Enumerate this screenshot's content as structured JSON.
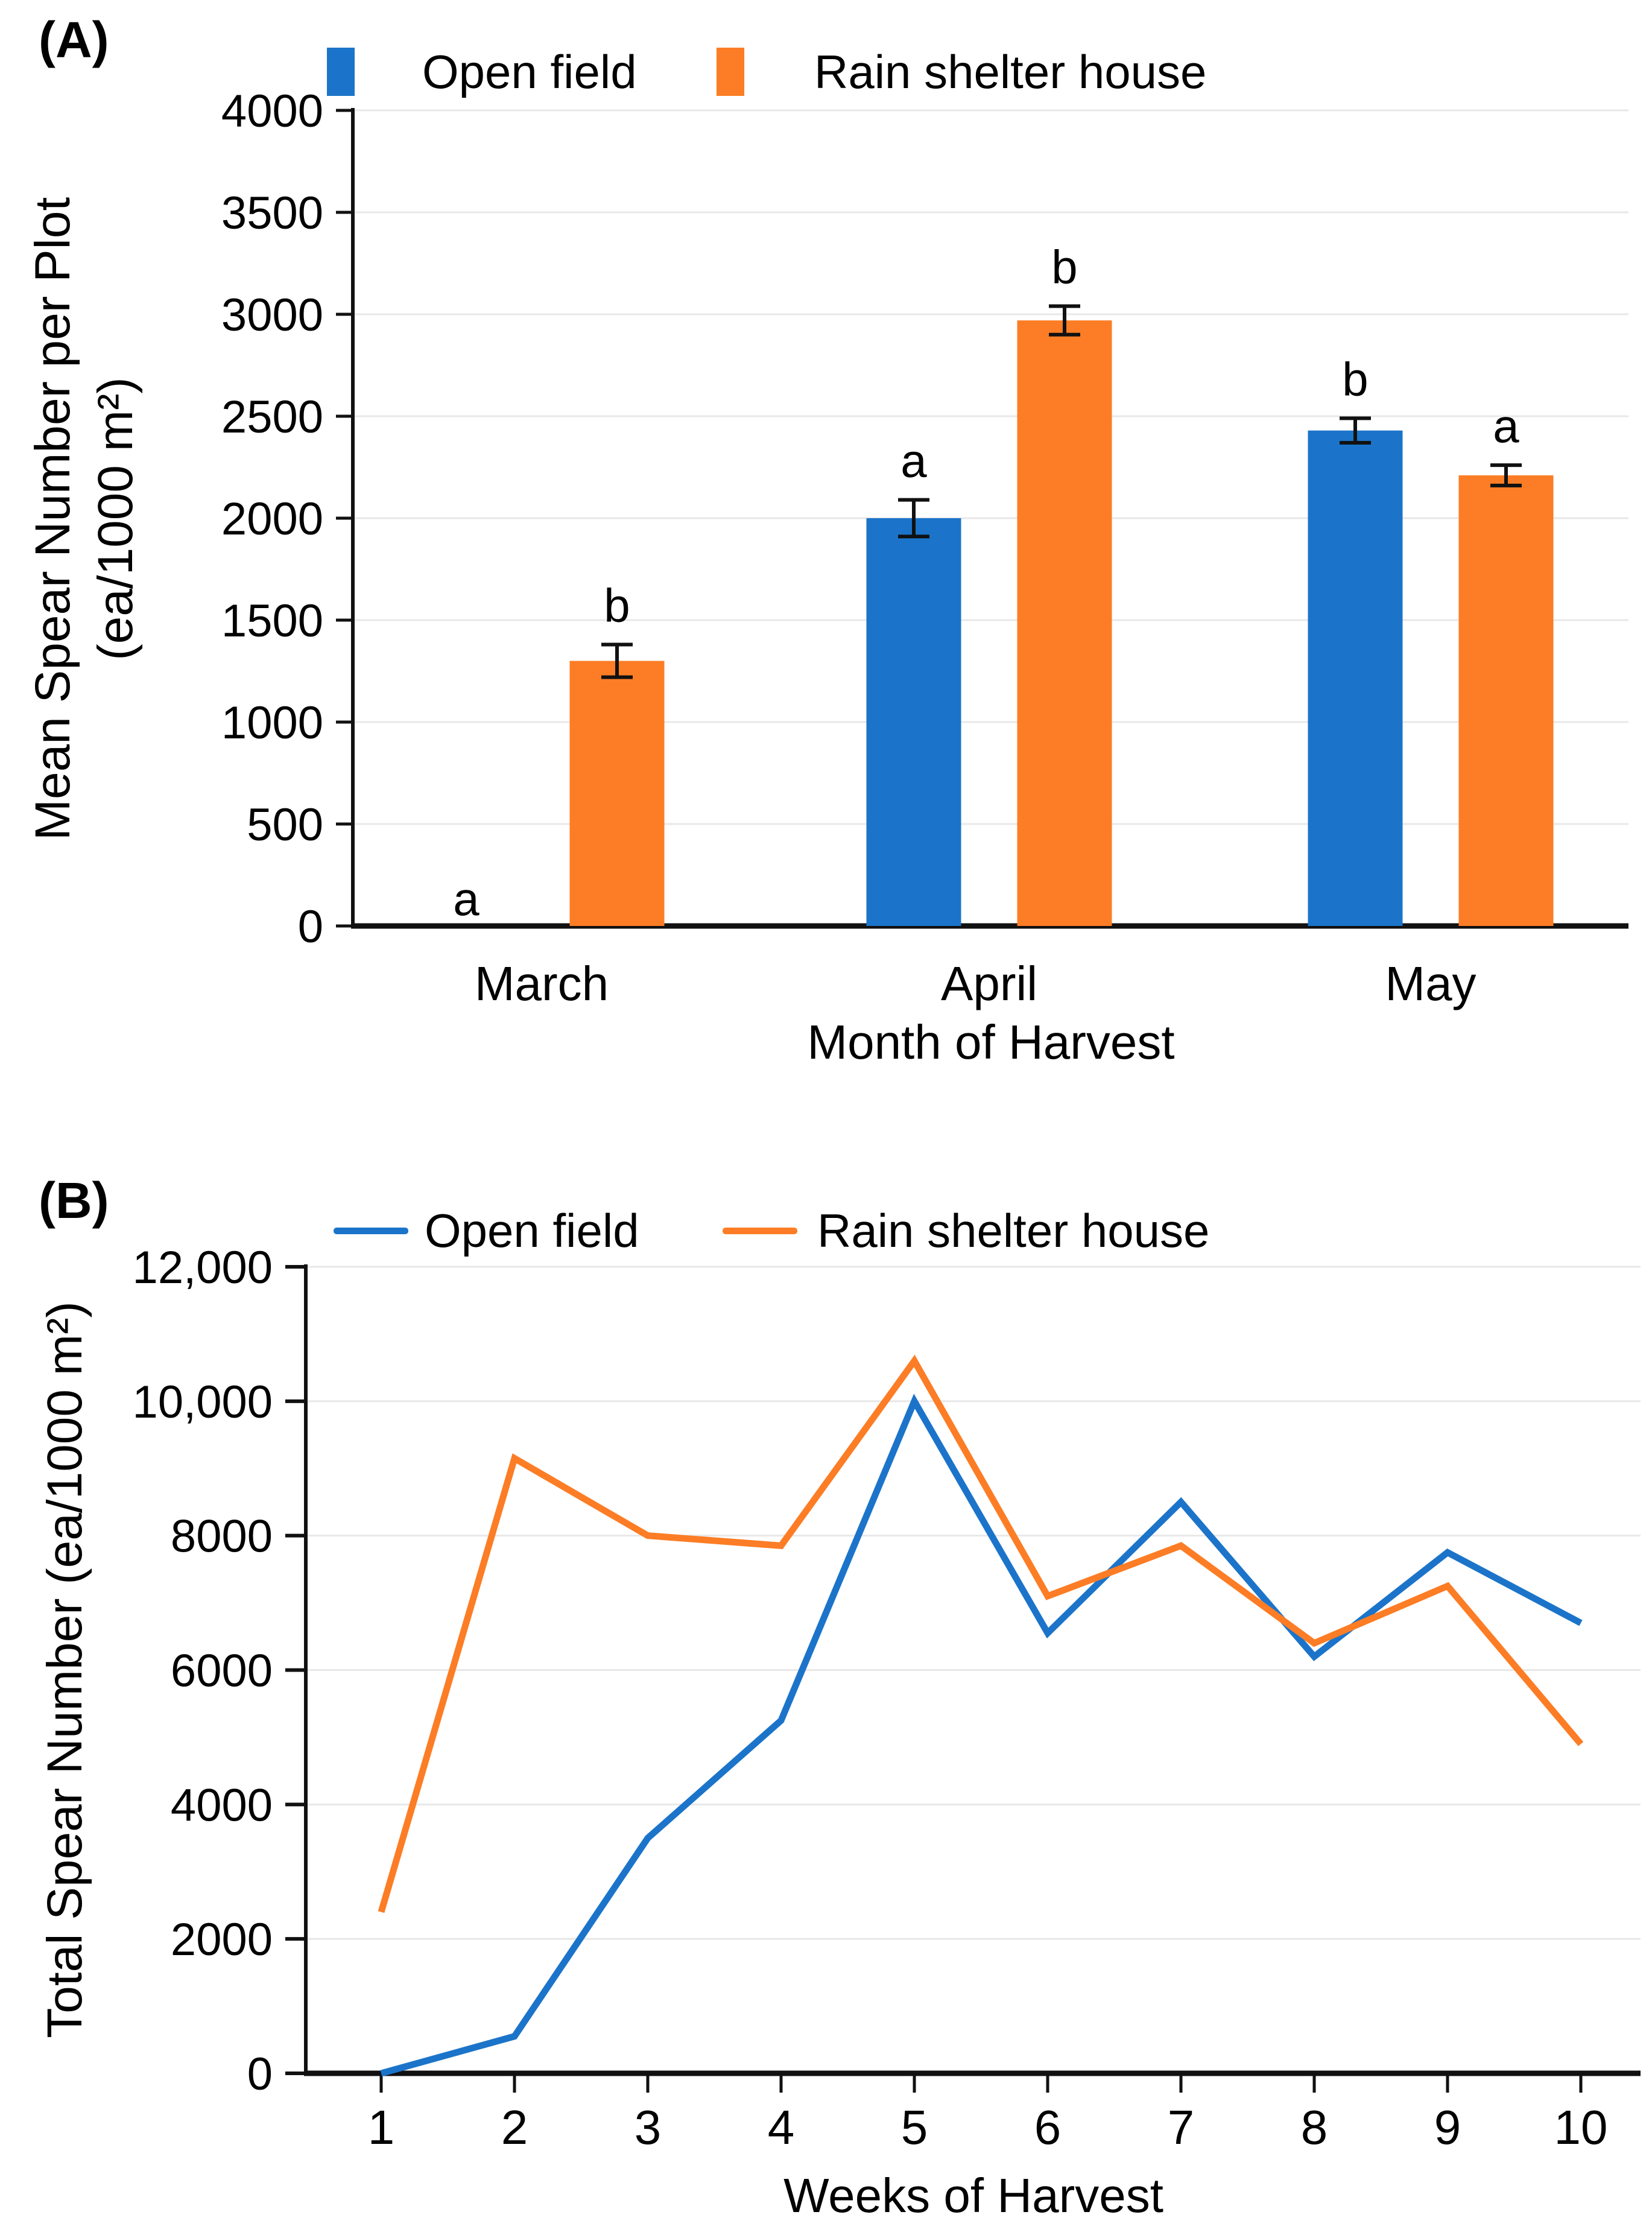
{
  "colors": {
    "background": "#ffffff",
    "axis": "#111111",
    "grid": "#e8e8e8",
    "text": "#000000",
    "open_field": "#1B74C9",
    "rain_shelter": "#FC7D25"
  },
  "chart_data": [
    {
      "id": "A",
      "panel_label": "(A)",
      "type": "bar",
      "categories": [
        "March",
        "April",
        "May"
      ],
      "series": [
        {
          "name": "Open field",
          "color": "#1B74C9",
          "values": [
            0,
            2000,
            2430
          ],
          "errors": [
            0,
            90,
            60
          ],
          "sig_letters": [
            "a",
            "a",
            "b"
          ]
        },
        {
          "name": "Rain shelter house",
          "color": "#FC7D25",
          "values": [
            1300,
            2970,
            2210
          ],
          "errors": [
            80,
            70,
            50
          ],
          "sig_letters": [
            "b",
            "b",
            "a"
          ]
        }
      ],
      "xlabel": "Month of Harvest",
      "ylabel_line1": "Mean Spear Number per Plot",
      "ylabel_line2": "(ea/1000 m²)",
      "ylim": [
        0,
        4000
      ],
      "ytick_step": 500,
      "ytick_labels": [
        "0",
        "500",
        "1000",
        "1500",
        "2000",
        "2500",
        "3000",
        "3500",
        "4000"
      ],
      "grid": true,
      "legend_position": "top",
      "error_bars": true
    },
    {
      "id": "B",
      "panel_label": "(B)",
      "type": "line",
      "x": [
        1,
        2,
        3,
        4,
        5,
        6,
        7,
        8,
        9,
        10
      ],
      "series": [
        {
          "name": "Open field",
          "color": "#1B74C9",
          "values": [
            0,
            550,
            3500,
            5250,
            10000,
            6550,
            8500,
            6200,
            7750,
            6700
          ]
        },
        {
          "name": "Rain shelter house",
          "color": "#FC7D25",
          "values": [
            2400,
            9150,
            8000,
            7850,
            10600,
            7100,
            7850,
            6400,
            7250,
            4900
          ]
        }
      ],
      "xlabel": "Weeks of Harvest",
      "ylabel": "Total Spear Number (ea/1000 m²)",
      "ylim": [
        0,
        12000
      ],
      "ytick_step": 2000,
      "ytick_labels": [
        "0",
        "2000",
        "4000",
        "6000",
        "8000",
        "10,000",
        "12,000"
      ],
      "grid": true,
      "legend_position": "top"
    }
  ]
}
